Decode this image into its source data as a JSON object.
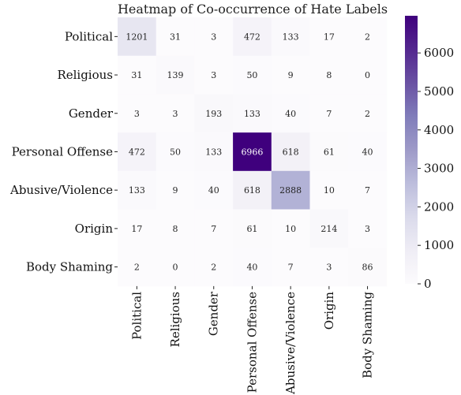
{
  "chart_data": {
    "type": "heatmap",
    "title": "Heatmap of Co-occurrence of Hate Labels",
    "rows": [
      "Political",
      "Religious",
      "Gender",
      "Personal Offense",
      "Abusive/Violence",
      "Origin",
      "Body Shaming"
    ],
    "columns": [
      "Political",
      "Religious",
      "Gender",
      "Personal Offense",
      "Abusive/Violence",
      "Origin",
      "Body Shaming"
    ],
    "values": [
      [
        1201,
        31,
        3,
        472,
        133,
        17,
        2
      ],
      [
        31,
        139,
        3,
        50,
        9,
        8,
        0
      ],
      [
        3,
        3,
        193,
        133,
        40,
        7,
        2
      ],
      [
        472,
        50,
        133,
        6966,
        618,
        61,
        40
      ],
      [
        133,
        9,
        40,
        618,
        2888,
        10,
        7
      ],
      [
        17,
        8,
        7,
        61,
        10,
        214,
        3
      ],
      [
        2,
        0,
        2,
        40,
        7,
        3,
        86
      ]
    ],
    "colorbar": {
      "min": 0,
      "max": 6966,
      "ticks": [
        0,
        1000,
        2000,
        3000,
        4000,
        5000,
        6000
      ],
      "colormap": "Purples",
      "low_color": "#fcfbfd",
      "high_color": "#3f007d"
    }
  }
}
